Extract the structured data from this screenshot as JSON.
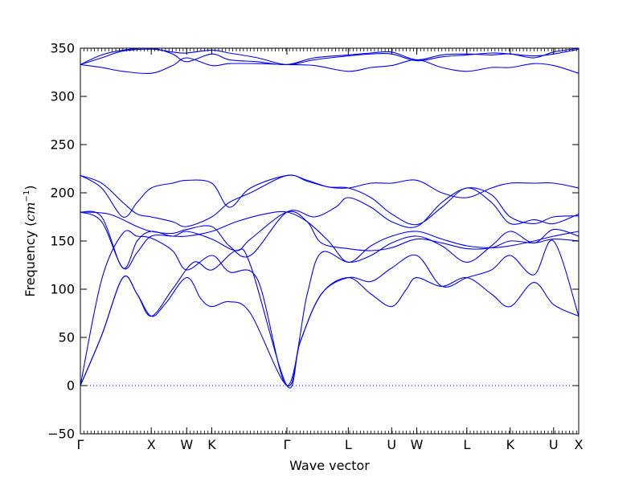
{
  "chart_data": {
    "type": "line",
    "title": "",
    "xlabel": "Wave vector",
    "ylabel": "Frequency ($cm^{-1}$)",
    "ylabel_text": "Frequency (",
    "ylabel_unit_base": "cm",
    "ylabel_unit_exp": "−1",
    "ylabel_close": ")",
    "ylim": [
      -50,
      350
    ],
    "yticks": [
      -50,
      0,
      50,
      100,
      150,
      200,
      250,
      300,
      350
    ],
    "ytick_labels": [
      "−50",
      "0",
      "50",
      "100",
      "150",
      "200",
      "250",
      "300",
      "350"
    ],
    "xticks": [
      {
        "label": "Γ",
        "x": 0
      },
      {
        "label": "X",
        "x": 1
      },
      {
        "label": "W",
        "x": 1.5
      },
      {
        "label": "K",
        "x": 1.854
      },
      {
        "label": "Γ",
        "x": 2.914
      },
      {
        "label": "L",
        "x": 3.78
      },
      {
        "label": "U",
        "x": 4.392
      },
      {
        "label": "W",
        "x": 4.746
      },
      {
        "label": "L",
        "x": 5.453
      },
      {
        "label": "K",
        "x": 6.065
      },
      {
        "label": "U",
        "x": 6.677
      },
      {
        "label": "X",
        "x": 7.031
      }
    ],
    "xlim": [
      0,
      7.031
    ],
    "zero_line": true,
    "grid": false,
    "color": "#0000ff",
    "series": [
      {
        "values": [
          [
            0,
            0
          ],
          [
            0.3,
            52
          ],
          [
            0.6,
            112
          ],
          [
            0.8,
            95
          ],
          [
            1.0,
            72
          ],
          [
            1.2,
            85
          ],
          [
            1.5,
            112
          ],
          [
            1.7,
            90
          ],
          [
            1.854,
            82
          ],
          [
            2.1,
            87
          ],
          [
            2.4,
            75
          ],
          [
            2.914,
            0
          ],
          [
            3.1,
            45
          ],
          [
            3.4,
            95
          ],
          [
            3.78,
            112
          ],
          [
            4.1,
            95
          ],
          [
            4.392,
            82
          ],
          [
            4.6,
            100
          ],
          [
            4.746,
            112
          ],
          [
            5.1,
            103
          ],
          [
            5.453,
            112
          ],
          [
            5.8,
            95
          ],
          [
            6.065,
            82
          ],
          [
            6.4,
            107
          ],
          [
            6.677,
            84
          ],
          [
            7.031,
            72
          ]
        ]
      },
      {
        "values": [
          [
            0,
            0
          ],
          [
            0.3,
            52
          ],
          [
            0.6,
            112
          ],
          [
            0.8,
            95
          ],
          [
            1.0,
            72
          ],
          [
            1.3,
            100
          ],
          [
            1.6,
            128
          ],
          [
            1.854,
            120
          ],
          [
            2.2,
            140
          ],
          [
            2.4,
            125
          ],
          [
            2.914,
            0
          ],
          [
            3.1,
            45
          ],
          [
            3.4,
            95
          ],
          [
            3.78,
            112
          ],
          [
            4.1,
            108
          ],
          [
            4.392,
            122
          ],
          [
            4.746,
            135
          ],
          [
            5.1,
            103
          ],
          [
            5.453,
            112
          ],
          [
            5.8,
            120
          ],
          [
            6.065,
            135
          ],
          [
            6.4,
            115
          ],
          [
            6.677,
            150
          ],
          [
            7.031,
            72
          ]
        ]
      },
      {
        "values": [
          [
            0,
            0
          ],
          [
            0.3,
            110
          ],
          [
            0.6,
            158
          ],
          [
            0.8,
            155
          ],
          [
            1.0,
            153
          ],
          [
            1.3,
            140
          ],
          [
            1.5,
            120
          ],
          [
            1.854,
            135
          ],
          [
            2.1,
            118
          ],
          [
            2.5,
            110
          ],
          [
            2.914,
            0
          ],
          [
            3.2,
            95
          ],
          [
            3.4,
            138
          ],
          [
            3.78,
            128
          ],
          [
            4.1,
            135
          ],
          [
            4.392,
            148
          ],
          [
            4.746,
            155
          ],
          [
            5.1,
            145
          ],
          [
            5.453,
            128
          ],
          [
            5.8,
            145
          ],
          [
            6.065,
            160
          ],
          [
            6.4,
            148
          ],
          [
            6.677,
            162
          ],
          [
            7.031,
            155
          ]
        ]
      },
      {
        "values": [
          [
            0,
            180
          ],
          [
            0.3,
            170
          ],
          [
            0.6,
            122
          ],
          [
            0.8,
            138
          ],
          [
            1.0,
            155
          ],
          [
            1.3,
            155
          ],
          [
            1.5,
            155
          ],
          [
            1.854,
            160
          ],
          [
            2.2,
            170
          ],
          [
            2.6,
            178
          ],
          [
            2.914,
            180
          ],
          [
            3.2,
            170
          ],
          [
            3.5,
            150
          ],
          [
            3.78,
            128
          ],
          [
            4.1,
            145
          ],
          [
            4.392,
            155
          ],
          [
            4.746,
            160
          ],
          [
            5.1,
            152
          ],
          [
            5.453,
            145
          ],
          [
            5.8,
            143
          ],
          [
            6.065,
            145
          ],
          [
            6.4,
            150
          ],
          [
            6.677,
            155
          ],
          [
            7.031,
            160
          ]
        ]
      },
      {
        "values": [
          [
            0,
            180
          ],
          [
            0.3,
            175
          ],
          [
            0.6,
            122
          ],
          [
            0.8,
            150
          ],
          [
            1.0,
            160
          ],
          [
            1.3,
            155
          ],
          [
            1.5,
            160
          ],
          [
            1.854,
            152
          ],
          [
            2.2,
            140
          ],
          [
            2.4,
            152
          ],
          [
            2.914,
            180
          ],
          [
            3.2,
            170
          ],
          [
            3.4,
            148
          ],
          [
            3.78,
            142
          ],
          [
            4.1,
            140
          ],
          [
            4.392,
            143
          ],
          [
            4.746,
            152
          ],
          [
            5.1,
            148
          ],
          [
            5.453,
            142
          ],
          [
            5.8,
            143
          ],
          [
            6.065,
            150
          ],
          [
            6.4,
            148
          ],
          [
            6.677,
            152
          ],
          [
            7.031,
            150
          ]
        ]
      },
      {
        "values": [
          [
            0,
            218
          ],
          [
            0.3,
            205
          ],
          [
            0.6,
            175
          ],
          [
            0.8,
            190
          ],
          [
            1.0,
            205
          ],
          [
            1.3,
            210
          ],
          [
            1.5,
            213
          ],
          [
            1.854,
            210
          ],
          [
            2.1,
            185
          ],
          [
            2.4,
            205
          ],
          [
            2.914,
            218
          ],
          [
            3.2,
            213
          ],
          [
            3.5,
            206
          ],
          [
            3.78,
            205
          ],
          [
            4.1,
            210
          ],
          [
            4.392,
            210
          ],
          [
            4.746,
            213
          ],
          [
            5.1,
            200
          ],
          [
            5.453,
            195
          ],
          [
            5.8,
            205
          ],
          [
            6.065,
            210
          ],
          [
            6.4,
            210
          ],
          [
            6.677,
            210
          ],
          [
            7.031,
            205
          ]
        ]
      },
      {
        "values": [
          [
            0,
            218
          ],
          [
            0.3,
            210
          ],
          [
            0.6,
            190
          ],
          [
            0.8,
            178
          ],
          [
            1.0,
            175
          ],
          [
            1.3,
            170
          ],
          [
            1.5,
            165
          ],
          [
            1.854,
            175
          ],
          [
            2.1,
            190
          ],
          [
            2.4,
            200
          ],
          [
            2.914,
            218
          ],
          [
            3.2,
            212
          ],
          [
            3.5,
            206
          ],
          [
            3.78,
            205
          ],
          [
            4.1,
            195
          ],
          [
            4.392,
            178
          ],
          [
            4.746,
            167
          ],
          [
            5.1,
            185
          ],
          [
            5.453,
            205
          ],
          [
            5.8,
            190
          ],
          [
            6.065,
            168
          ],
          [
            6.4,
            172
          ],
          [
            6.677,
            168
          ],
          [
            7.031,
            178
          ]
        ]
      },
      {
        "values": [
          [
            0,
            180
          ],
          [
            0.4,
            178
          ],
          [
            0.8,
            165
          ],
          [
            1.0,
            160
          ],
          [
            1.3,
            158
          ],
          [
            1.5,
            162
          ],
          [
            1.854,
            165
          ],
          [
            2.1,
            145
          ],
          [
            2.4,
            135
          ],
          [
            2.914,
            180
          ],
          [
            3.3,
            175
          ],
          [
            3.6,
            185
          ],
          [
            3.78,
            195
          ],
          [
            4.1,
            185
          ],
          [
            4.392,
            170
          ],
          [
            4.746,
            165
          ],
          [
            5.1,
            190
          ],
          [
            5.453,
            205
          ],
          [
            5.8,
            198
          ],
          [
            6.065,
            175
          ],
          [
            6.4,
            168
          ],
          [
            6.677,
            175
          ],
          [
            7.031,
            176
          ]
        ]
      },
      {
        "values": [
          [
            0,
            333
          ],
          [
            0.3,
            343
          ],
          [
            0.6,
            348
          ],
          [
            1.0,
            350
          ],
          [
            1.3,
            344
          ],
          [
            1.5,
            336
          ],
          [
            1.854,
            344
          ],
          [
            2.1,
            338
          ],
          [
            2.5,
            336
          ],
          [
            2.914,
            333
          ],
          [
            3.3,
            340
          ],
          [
            3.78,
            343
          ],
          [
            4.1,
            345
          ],
          [
            4.392,
            346
          ],
          [
            4.746,
            338
          ],
          [
            5.1,
            343
          ],
          [
            5.453,
            344
          ],
          [
            5.8,
            343
          ],
          [
            6.065,
            344
          ],
          [
            6.4,
            340
          ],
          [
            6.677,
            346
          ],
          [
            7.031,
            350
          ]
        ]
      },
      {
        "values": [
          [
            0,
            333
          ],
          [
            0.3,
            330
          ],
          [
            0.6,
            326
          ],
          [
            1.0,
            324
          ],
          [
            1.3,
            332
          ],
          [
            1.5,
            340
          ],
          [
            1.854,
            332
          ],
          [
            2.1,
            334
          ],
          [
            2.5,
            334
          ],
          [
            2.914,
            333
          ],
          [
            3.3,
            332
          ],
          [
            3.78,
            326
          ],
          [
            4.1,
            330
          ],
          [
            4.392,
            332
          ],
          [
            4.746,
            338
          ],
          [
            5.1,
            330
          ],
          [
            5.453,
            326
          ],
          [
            5.8,
            330
          ],
          [
            6.065,
            330
          ],
          [
            6.4,
            334
          ],
          [
            6.677,
            332
          ],
          [
            7.031,
            324
          ]
        ]
      },
      {
        "values": [
          [
            0,
            333
          ],
          [
            0.3,
            340
          ],
          [
            0.6,
            347
          ],
          [
            1.0,
            349
          ],
          [
            1.3,
            346
          ],
          [
            1.5,
            345
          ],
          [
            1.854,
            348
          ],
          [
            2.1,
            345
          ],
          [
            2.5,
            340
          ],
          [
            2.914,
            333
          ],
          [
            3.3,
            338
          ],
          [
            3.78,
            342
          ],
          [
            4.1,
            344
          ],
          [
            4.392,
            344
          ],
          [
            4.746,
            337
          ],
          [
            5.1,
            341
          ],
          [
            5.453,
            343
          ],
          [
            5.8,
            345
          ],
          [
            6.065,
            344
          ],
          [
            6.4,
            342
          ],
          [
            6.677,
            344
          ],
          [
            7.031,
            349
          ]
        ]
      }
    ]
  }
}
